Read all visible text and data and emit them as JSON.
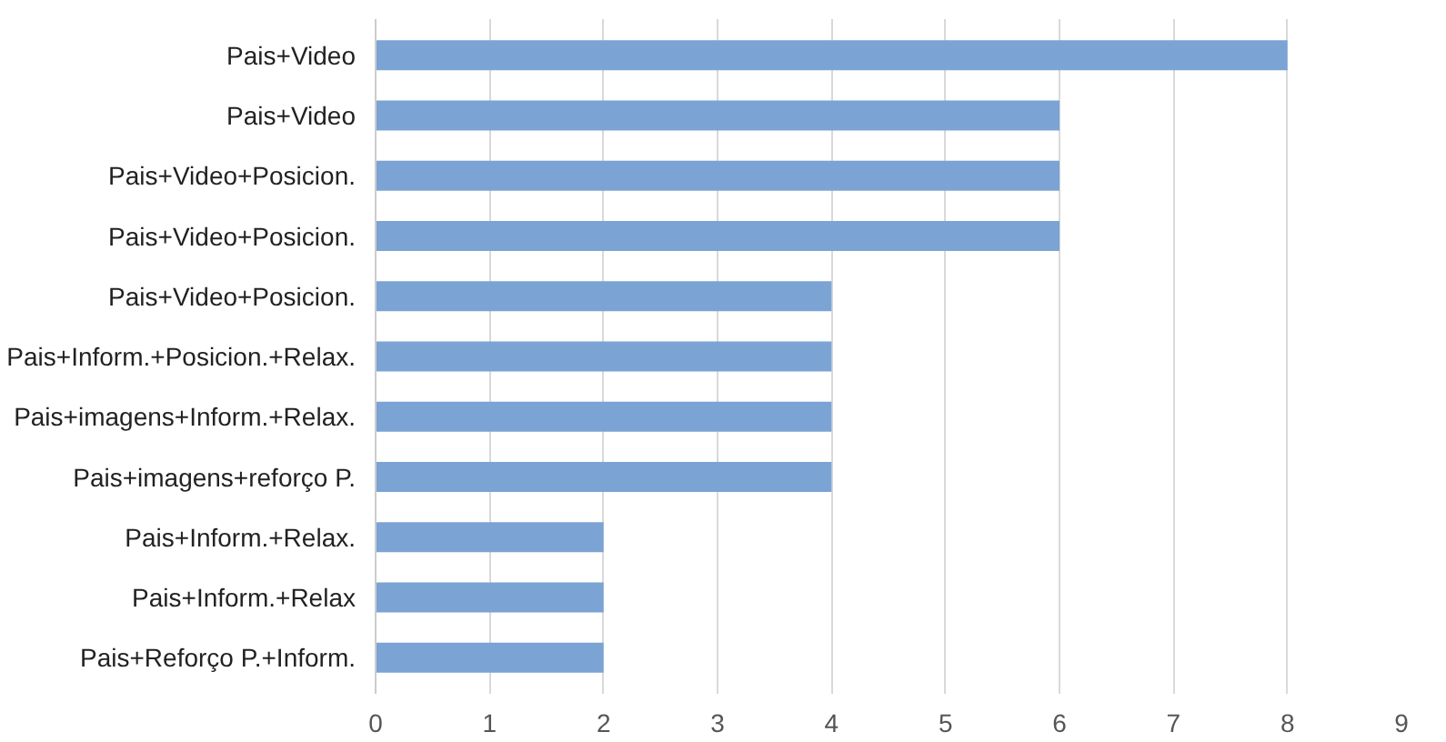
{
  "chart_data": {
    "type": "bar",
    "orientation": "horizontal",
    "categories": [
      "Pais+Video",
      "Pais+Video",
      "Pais+Video+Posicion.",
      "Pais+Video+Posicion.",
      "Pais+Video+Posicion.",
      "Pais+Inform.+Posicion.+Relax.",
      "Pais+imagens+Inform.+Relax.",
      "Pais+imagens+reforço P.",
      "Pais+Inform.+Relax.",
      "Pais+Inform.+Relax",
      "Pais+Reforço P.+Inform."
    ],
    "values": [
      8,
      6,
      6,
      6,
      4,
      4,
      4,
      4,
      2,
      2,
      2
    ],
    "color": "#7ba3d4",
    "xlim": [
      0,
      9
    ],
    "xticks": [
      0,
      1,
      2,
      3,
      4,
      5,
      6,
      7,
      8,
      9
    ],
    "grid": "x"
  }
}
